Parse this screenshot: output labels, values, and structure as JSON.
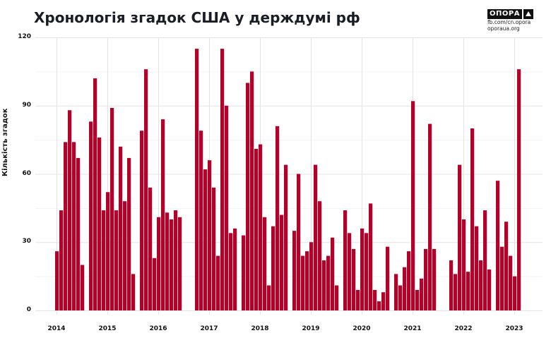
{
  "header": {
    "title": "Хронологія згадок США у держдумі рф",
    "logo_text": "ОПОРА",
    "logo_line1": "fb.com/cn.opora",
    "logo_line2": "oporaua.org"
  },
  "colors": {
    "bar": "#b5002a",
    "grid": "#e3e3e3",
    "text": "#111111"
  },
  "chart_data": {
    "type": "bar",
    "title": "Хронологія згадок США у держдумі рф",
    "xlabel": "",
    "ylabel": "Кількість згадок",
    "ylim": [
      0,
      120
    ],
    "yticks": [
      0,
      30,
      60,
      90,
      120
    ],
    "minor_gridlines": [
      15,
      45,
      75,
      105
    ],
    "xtick_labels": [
      "2014",
      "2015",
      "2016",
      "2017",
      "2018",
      "2019",
      "2020",
      "2021",
      "2022",
      "2023"
    ],
    "grid": true,
    "legend": null,
    "granularity": "monthly, Jan 2014 – Feb 2023 (null = no data)",
    "series": [
      {
        "name": "Кількість згадок",
        "start": "2014-01",
        "values": [
          26,
          44,
          74,
          88,
          74,
          67,
          20,
          null,
          83,
          102,
          76,
          44,
          52,
          89,
          44,
          72,
          48,
          67,
          16,
          null,
          79,
          106,
          54,
          23,
          41,
          84,
          43,
          40,
          44,
          41,
          null,
          null,
          null,
          115,
          79,
          62,
          66,
          54,
          24,
          115,
          90,
          34,
          36,
          null,
          33,
          100,
          105,
          71,
          73,
          41,
          11,
          37,
          81,
          42,
          64,
          null,
          35,
          60,
          24,
          26,
          30,
          64,
          48,
          22,
          24,
          32,
          11,
          null,
          44,
          34,
          27,
          9,
          36,
          34,
          47,
          9,
          4,
          8,
          28,
          null,
          16,
          11,
          19,
          26,
          92,
          9,
          14,
          27,
          82,
          27,
          null,
          null,
          null,
          22,
          16,
          64,
          40,
          17,
          80,
          37,
          22,
          44,
          18,
          null,
          57,
          28,
          39,
          24,
          15,
          106
        ]
      }
    ]
  }
}
